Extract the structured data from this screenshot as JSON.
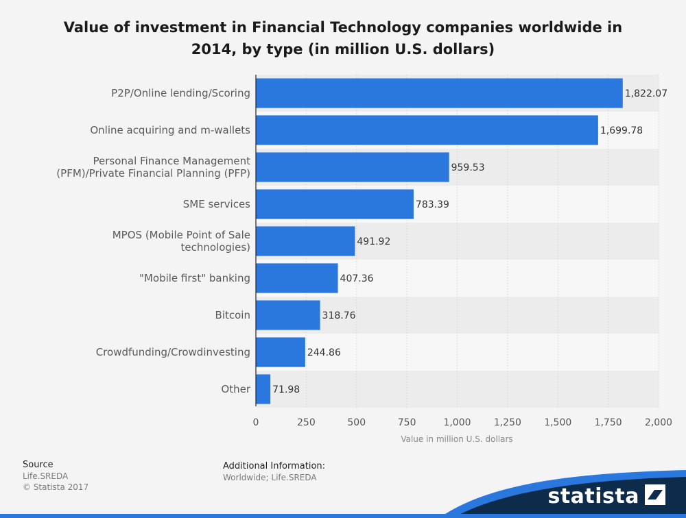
{
  "colors": {
    "bar": "#2a77de",
    "row_dark": "#ececec",
    "row_light": "#f7f7f7",
    "brand_bg": "#0d2b4a",
    "brand_wave": "#2a77de"
  },
  "chart_data": {
    "type": "bar",
    "orientation": "horizontal",
    "title": "Value of investment in Financial Technology companies worldwide in 2014, by type (in million U.S. dollars)",
    "categories": [
      "P2P/Online lending/Scoring",
      "Online acquiring and m-wallets",
      "Personal Finance Management\n(PFM)/Private Financial Planning (PFP)",
      "SME services",
      "MPOS (Mobile Point of Sale\ntechnologies)",
      "\"Mobile first\" banking",
      "Bitcoin",
      "Crowdfunding/Crowdinvesting",
      "Other"
    ],
    "values": [
      1822.07,
      1699.78,
      959.53,
      783.39,
      491.92,
      407.36,
      318.76,
      244.86,
      71.98
    ],
    "value_labels": [
      "1,822.07",
      "1,699.78",
      "959.53",
      "783.39",
      "491.92",
      "407.36",
      "318.76",
      "244.86",
      "71.98"
    ],
    "xlabel": "Value in million U.S. dollars",
    "xlim": [
      0,
      2000
    ],
    "xticks": [
      0,
      250,
      500,
      750,
      1000,
      1250,
      1500,
      1750,
      2000
    ],
    "xtick_labels": [
      "0",
      "250",
      "500",
      "750",
      "1,000",
      "1,250",
      "1,500",
      "1,750",
      "2,000"
    ],
    "grid": "vertical dotted"
  },
  "footer": {
    "source_heading": "Source",
    "source_lines": [
      "Life.SREDA",
      "© Statista 2017"
    ],
    "info_heading": "Additional Information:",
    "info_text": "Worldwide; Life.SREDA",
    "brand": "statista"
  }
}
